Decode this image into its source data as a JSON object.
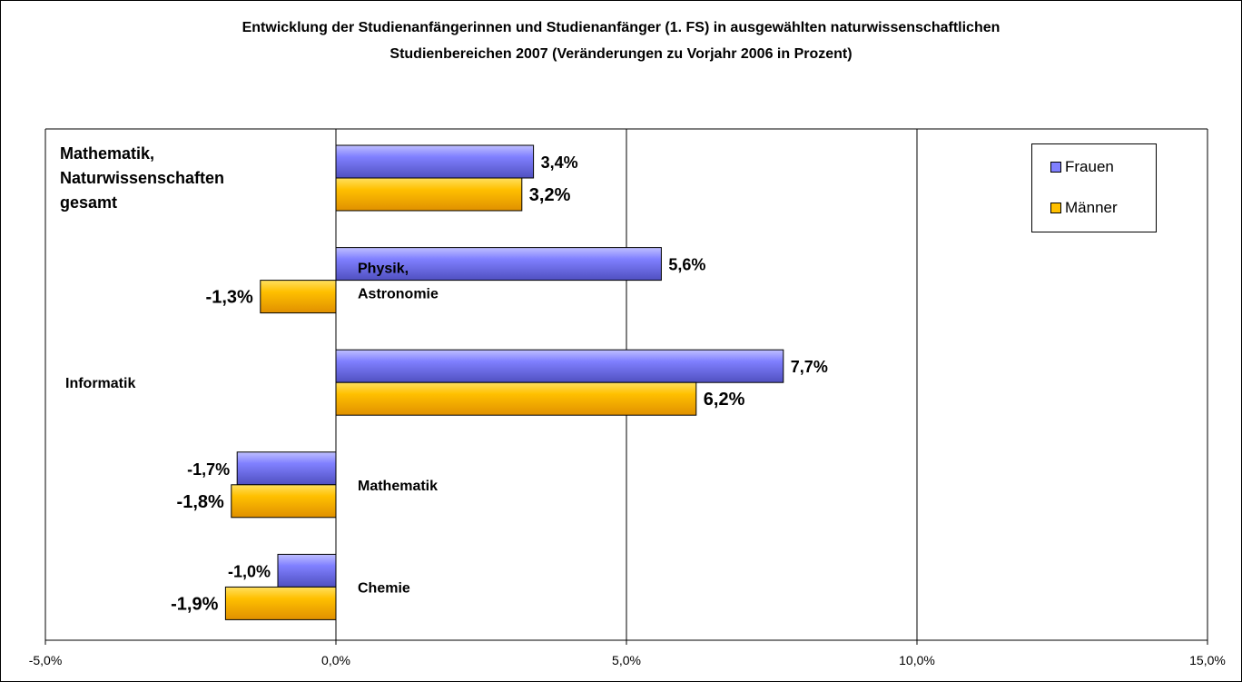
{
  "chart_data": {
    "type": "bar",
    "orientation": "horizontal",
    "title": "Entwicklung der Studienanfängerinnen und Studienanfänger (1. FS) in ausgewählten naturwissenschaftlichen",
    "subtitle": "Studienbereichen 2007 (Veränderungen zu Vorjahr 2006 in Prozent)",
    "xlim": [
      -5,
      15
    ],
    "xticks": [
      -5,
      0,
      5,
      10,
      15
    ],
    "xtick_labels": [
      "-5,0%",
      "0,0%",
      "5,0%",
      "10,0%",
      "15,0%"
    ],
    "grid": "vertical",
    "legend_position": "top-right",
    "categories": [
      [
        "Mathematik,",
        "Naturwissenschaften",
        "gesamt"
      ],
      [
        "Physik,",
        "Astronomie"
      ],
      [
        "Informatik"
      ],
      [
        "Mathematik"
      ],
      [
        "Chemie"
      ]
    ],
    "series": [
      {
        "name": "Frauen",
        "color": "#8080ff",
        "values": [
          3.4,
          5.6,
          7.7,
          -1.7,
          -1.0
        ],
        "labels": [
          "3,4%",
          "5,6%",
          "7,7%",
          "-1,7%",
          "-1,0%"
        ]
      },
      {
        "name": "Männer",
        "color": "#ffc000",
        "values": [
          3.2,
          -1.3,
          6.2,
          -1.8,
          -1.9
        ],
        "labels": [
          "3,2%",
          "-1,3%",
          "6,2%",
          "-1,8%",
          "-1,9%"
        ]
      }
    ]
  }
}
